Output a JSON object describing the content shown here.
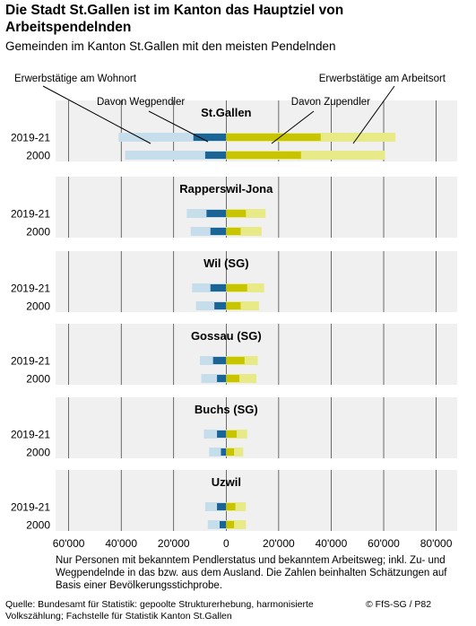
{
  "title": "Die Stadt St.Gallen ist im Kanton das Hauptziel von Arbeitspendelnden",
  "subtitle": "Gemeinden im Kanton St.Gallen mit den meisten Pendelnden",
  "note": "Nur Personen mit bekanntem Pendlerstatus und bekanntem Arbeitsweg; inkl. Zu- und Wegpendelnde in das bzw. aus dem Ausland. Die Zahlen beinhalten Schätzungen auf Basis einer Bevölkerungsstichprobe.",
  "source": "Quelle: Bundesamt für Statistik: gepoolte Strukturerhebung, harmonisierte Volkszählung; Fachstelle für Statistik Kanton St.Gallen",
  "copyright": "© FfS-SG / P82",
  "colors": {
    "wohnort": "#c6ddeb",
    "wegpendler": "#1a6496",
    "arbeitsort": "#e8ea87",
    "zupendler": "#c8c400",
    "panel_bg": "#f0f0f0",
    "grid": "#111111"
  },
  "chart_data": {
    "type": "bar",
    "orientation": "horizontal-diverging",
    "series": [
      {
        "name": "Erwerbstätige am Wohnort",
        "side": "left"
      },
      {
        "name": "Davon Wegpendler",
        "side": "left"
      },
      {
        "name": "Erwerbstätige am Arbeitsort",
        "side": "right"
      },
      {
        "name": "Davon Zupendler",
        "side": "right"
      }
    ],
    "xlim": [
      -65000,
      88000
    ],
    "ticks": [
      -60000,
      -40000,
      -20000,
      0,
      20000,
      40000,
      60000,
      80000
    ],
    "tick_labels": [
      "60'000",
      "40'000",
      "20'000",
      "0",
      "20'000",
      "40'000",
      "60'000",
      "80'000"
    ],
    "years": [
      "2019-21",
      "2000"
    ],
    "groups": [
      {
        "name": "St.Gallen",
        "rows": [
          {
            "year": "2019-21",
            "wohnort": 41000,
            "wegpendler": 12500,
            "arbeitsort": 64500,
            "zupendler": 36000
          },
          {
            "year": "2000",
            "wohnort": 38500,
            "wegpendler": 8000,
            "arbeitsort": 60500,
            "zupendler": 28500
          }
        ]
      },
      {
        "name": "Rapperswil-Jona",
        "rows": [
          {
            "year": "2019-21",
            "wohnort": 15000,
            "wegpendler": 7500,
            "arbeitsort": 15000,
            "zupendler": 7500
          },
          {
            "year": "2000",
            "wohnort": 13500,
            "wegpendler": 6000,
            "arbeitsort": 13500,
            "zupendler": 5500
          }
        ]
      },
      {
        "name": "Wil (SG)",
        "rows": [
          {
            "year": "2019-21",
            "wohnort": 13000,
            "wegpendler": 6000,
            "arbeitsort": 14500,
            "zupendler": 8000
          },
          {
            "year": "2000",
            "wohnort": 11500,
            "wegpendler": 4500,
            "arbeitsort": 12500,
            "zupendler": 5500
          }
        ]
      },
      {
        "name": "Gossau (SG)",
        "rows": [
          {
            "year": "2019-21",
            "wohnort": 10000,
            "wegpendler": 5000,
            "arbeitsort": 12000,
            "zupendler": 7000
          },
          {
            "year": "2000",
            "wohnort": 9500,
            "wegpendler": 3500,
            "arbeitsort": 11500,
            "zupendler": 5000
          }
        ]
      },
      {
        "name": "Buchs (SG)",
        "rows": [
          {
            "year": "2019-21",
            "wohnort": 8500,
            "wegpendler": 3500,
            "arbeitsort": 8000,
            "zupendler": 4000
          },
          {
            "year": "2000",
            "wohnort": 6500,
            "wegpendler": 2000,
            "arbeitsort": 6500,
            "zupendler": 3000
          }
        ]
      },
      {
        "name": "Uzwil",
        "rows": [
          {
            "year": "2019-21",
            "wohnort": 8000,
            "wegpendler": 3500,
            "arbeitsort": 7500,
            "zupendler": 3500
          },
          {
            "year": "2000",
            "wohnort": 7000,
            "wegpendler": 2500,
            "arbeitsort": 7500,
            "zupendler": 3000
          }
        ]
      }
    ]
  }
}
